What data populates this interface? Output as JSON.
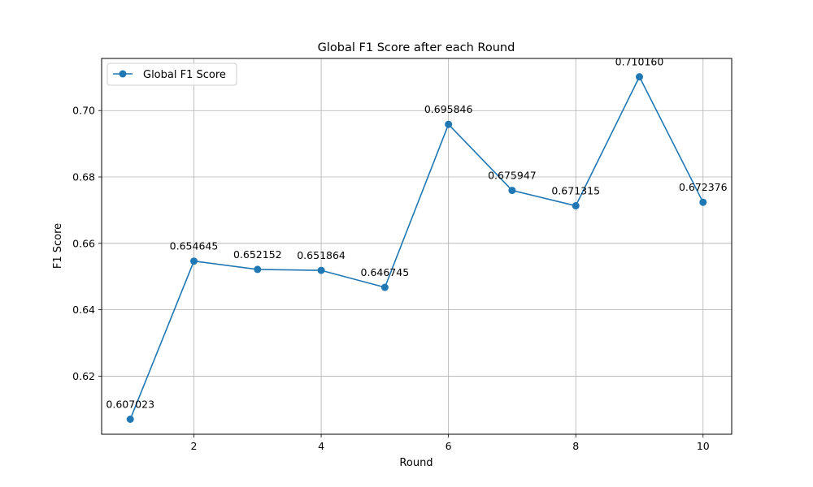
{
  "chart_data": {
    "type": "line",
    "title": "Global F1 Score after each Round",
    "xlabel": "Round",
    "ylabel": "F1 Score",
    "x": [
      1,
      2,
      3,
      4,
      5,
      6,
      7,
      8,
      9,
      10
    ],
    "series": [
      {
        "name": "Global F1 Score",
        "color": "#1f77b4",
        "marker": "circle",
        "values": [
          0.607023,
          0.654645,
          0.652152,
          0.651864,
          0.646745,
          0.695846,
          0.675947,
          0.671315,
          0.71016,
          0.672376
        ],
        "labels": [
          "0.607023",
          "0.654645",
          "0.652152",
          "0.651864",
          "0.646745",
          "0.695846",
          "0.675947",
          "0.671315",
          "0.710160",
          "0.672376"
        ]
      }
    ],
    "xlim": [
      0.55,
      10.45
    ],
    "ylim": [
      0.6025,
      0.7157
    ],
    "xticks": [
      2,
      4,
      6,
      8,
      10
    ],
    "xtick_labels": [
      "2",
      "4",
      "6",
      "8",
      "10"
    ],
    "yticks": [
      0.62,
      0.64,
      0.66,
      0.68,
      0.7
    ],
    "ytick_labels": [
      "0.62",
      "0.64",
      "0.66",
      "0.68",
      "0.70"
    ],
    "grid": true,
    "legend_position": "top-left"
  }
}
